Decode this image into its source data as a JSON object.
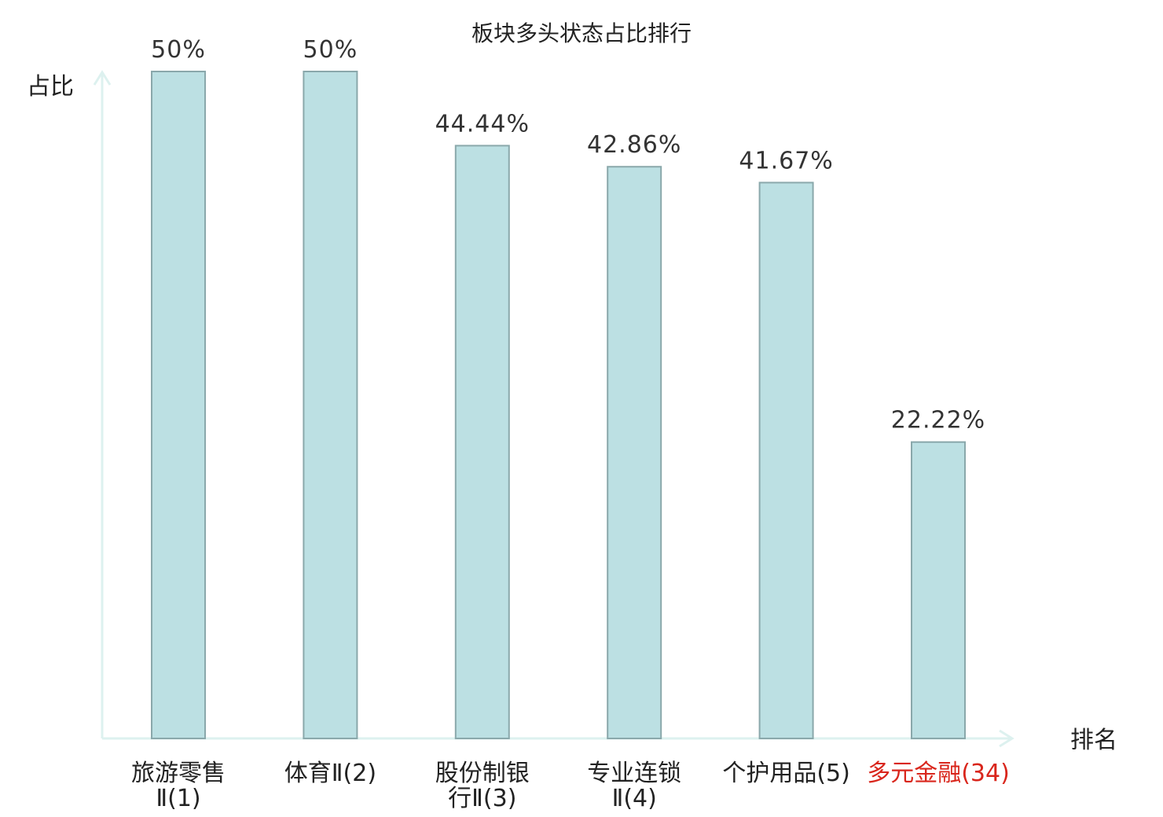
{
  "chart_data": {
    "type": "bar",
    "title": "板块多头状态占比排行",
    "ylabel": "占比",
    "xlabel": "排名",
    "ylim": [
      0,
      50
    ],
    "grid": false,
    "categories": [
      {
        "lines": [
          "旅游零售",
          "Ⅱ(1)"
        ],
        "highlight": false
      },
      {
        "lines": [
          "体育Ⅱ(2)"
        ],
        "highlight": false
      },
      {
        "lines": [
          "股份制银",
          "行Ⅱ(3)"
        ],
        "highlight": false
      },
      {
        "lines": [
          "专业连锁",
          "Ⅱ(4)"
        ],
        "highlight": false
      },
      {
        "lines": [
          "个护用品(5)"
        ],
        "highlight": false
      },
      {
        "lines": [
          "多元金融(34)"
        ],
        "highlight": true
      }
    ],
    "values": [
      50,
      50,
      44.44,
      42.86,
      41.67,
      22.22
    ],
    "value_labels": [
      "50%",
      "50%",
      "44.44%",
      "42.86%",
      "41.67%",
      "22.22%"
    ]
  },
  "colors": {
    "bar_fill": "#bce0e3",
    "bar_stroke": "#8aa8ab",
    "axis": "#ddf1ef",
    "highlight_text": "#d9261c",
    "text": "#222222"
  }
}
